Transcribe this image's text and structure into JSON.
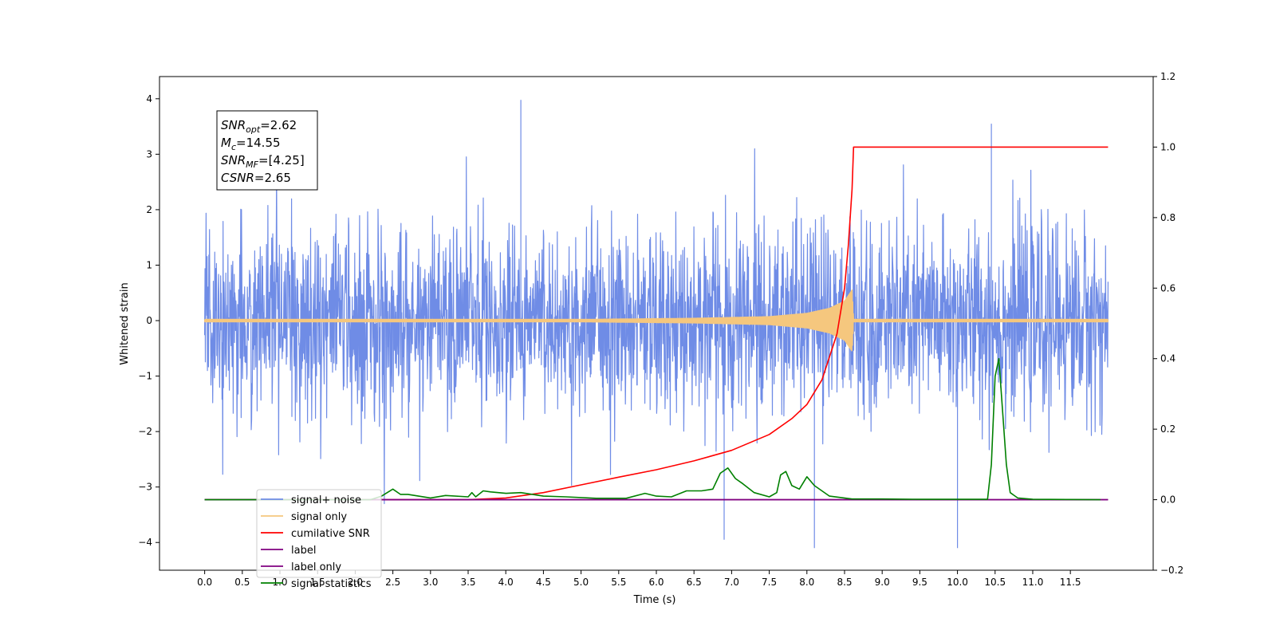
{
  "chart_data": {
    "type": "line",
    "xlabel": "Time (s)",
    "ylabel": "Whitened strain",
    "xlim": [
      -0.6,
      12.6
    ],
    "ylim": [
      -4.5,
      4.4
    ],
    "ylim_right": [
      -0.2,
      1.2
    ],
    "x_ticks": [
      "0.0",
      "0.5",
      "1.0",
      "1.5",
      "2.0",
      "2.5",
      "3.0",
      "3.5",
      "4.0",
      "4.5",
      "5.0",
      "5.5",
      "6.0",
      "6.5",
      "7.0",
      "7.5",
      "8.0",
      "8.5",
      "9.0",
      "9.5",
      "10.0",
      "10.5",
      "11.0",
      "11.5"
    ],
    "y_ticks_left": [
      "4",
      "3",
      "2",
      "1",
      "0",
      "−1",
      "−2",
      "−3",
      "−4"
    ],
    "y_ticks_right": [
      "1.2",
      "1.0",
      "0.8",
      "0.6",
      "0.4",
      "0.2",
      "0.0",
      "−0.2"
    ],
    "grid": false,
    "legend_position": "lower-left",
    "annotation": {
      "lines": [
        {
          "sym": "SNR",
          "sub": "opt",
          "val": "=2.62"
        },
        {
          "sym": "M",
          "sub": "c",
          "val": "=14.55"
        },
        {
          "sym": "SNR",
          "sub": "MF",
          "val": "=[4.25]"
        },
        {
          "sym": "CSNR",
          "sub": "",
          "val": "=2.65"
        }
      ]
    },
    "series": [
      {
        "name": "signal+ noise",
        "axis": "left",
        "color": "#6f8ce6",
        "style": "noise band approx. ±1.7 with spikes",
        "x": [
          0.0,
          4.2,
          6.9,
          8.1,
          10.0,
          10.45,
          12.0
        ],
        "y": [
          0.0,
          3.98,
          -3.95,
          -4.1,
          -4.1,
          3.55,
          0.0
        ],
        "envelope": 1.7
      },
      {
        "name": "signal only",
        "axis": "left",
        "color": "#f5c77e",
        "style": "chirp",
        "x": [
          0.0,
          5.0,
          6.5,
          7.5,
          8.0,
          8.3,
          8.5,
          8.6,
          8.62,
          12.0
        ],
        "y": [
          0.02,
          0.02,
          0.04,
          0.07,
          0.13,
          0.22,
          0.35,
          0.55,
          0.02,
          0.02
        ]
      },
      {
        "name": "cumilative SNR",
        "axis": "right",
        "color": "#ff0000",
        "x": [
          0.0,
          3.5,
          4.0,
          4.5,
          5.0,
          5.5,
          6.0,
          6.5,
          7.0,
          7.5,
          7.8,
          8.0,
          8.2,
          8.4,
          8.5,
          8.55,
          8.6,
          8.62,
          12.0
        ],
        "y": [
          0.0,
          0.0,
          0.005,
          0.02,
          0.042,
          0.064,
          0.085,
          0.11,
          0.14,
          0.185,
          0.23,
          0.27,
          0.34,
          0.47,
          0.6,
          0.72,
          0.88,
          1.0,
          1.0
        ]
      },
      {
        "name": "label",
        "axis": "right",
        "color": "#800080",
        "x": [
          0.0,
          12.0
        ],
        "y": [
          0.0,
          0.0
        ]
      },
      {
        "name": "label only",
        "axis": "right",
        "color": "#800080",
        "x": [
          0.0,
          12.0
        ],
        "y": [
          0.0,
          0.0
        ]
      },
      {
        "name": "signal statistics",
        "axis": "right",
        "color": "#008000",
        "x": [
          0.0,
          2.2,
          2.35,
          2.5,
          2.6,
          2.7,
          3.0,
          3.2,
          3.5,
          3.55,
          3.6,
          3.7,
          3.8,
          4.0,
          4.2,
          4.5,
          4.8,
          5.2,
          5.6,
          5.85,
          6.0,
          6.2,
          6.4,
          6.6,
          6.75,
          6.85,
          6.95,
          7.05,
          7.15,
          7.3,
          7.5,
          7.6,
          7.65,
          7.72,
          7.8,
          7.9,
          8.0,
          8.1,
          8.3,
          8.6,
          9.0,
          9.5,
          10.0,
          10.4,
          10.45,
          10.5,
          10.55,
          10.6,
          10.65,
          10.7,
          10.8,
          11.0,
          11.9
        ],
        "y": [
          0.0,
          0.0,
          0.01,
          0.03,
          0.015,
          0.015,
          0.005,
          0.012,
          0.008,
          0.02,
          0.008,
          0.025,
          0.022,
          0.018,
          0.02,
          0.01,
          0.008,
          0.004,
          0.004,
          0.018,
          0.01,
          0.008,
          0.025,
          0.025,
          0.03,
          0.075,
          0.09,
          0.06,
          0.045,
          0.02,
          0.008,
          0.02,
          0.07,
          0.08,
          0.04,
          0.03,
          0.065,
          0.04,
          0.01,
          0.002,
          0.002,
          0.001,
          0.001,
          0.001,
          0.1,
          0.35,
          0.4,
          0.25,
          0.1,
          0.02,
          0.005,
          0.001,
          0.0
        ]
      }
    ]
  }
}
